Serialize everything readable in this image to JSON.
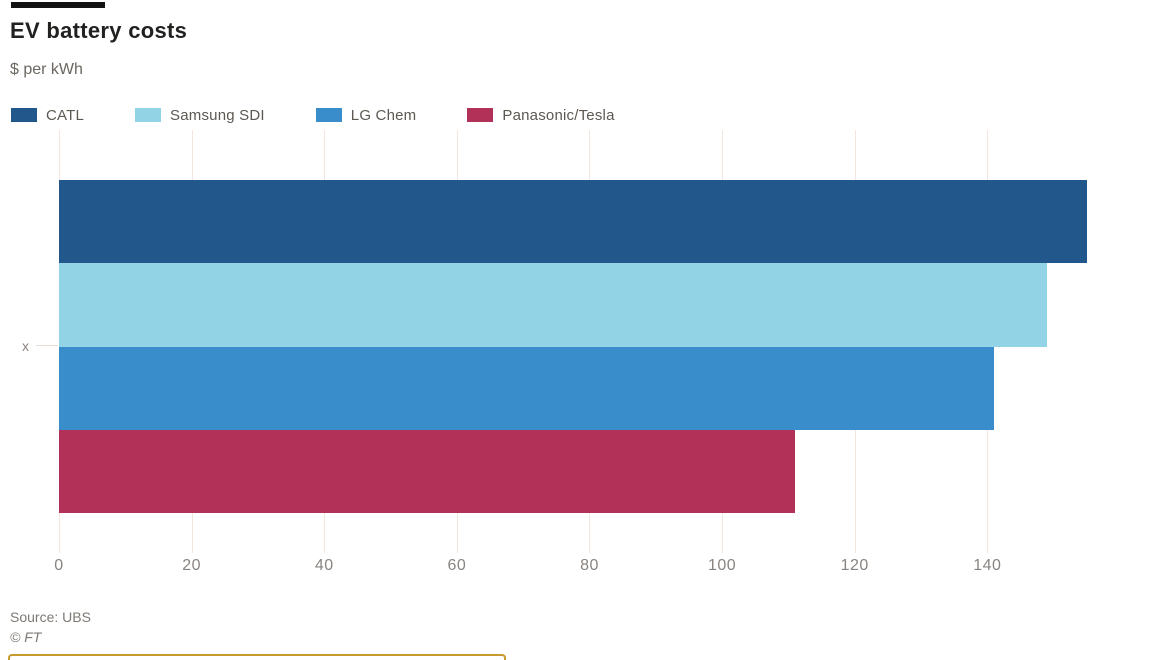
{
  "header": {
    "title": "EV battery costs",
    "subtitle": "$ per kWh"
  },
  "legend": {
    "items": [
      {
        "label": "CATL",
        "color": "#21578a"
      },
      {
        "label": "Samsung SDI",
        "color": "#93d3e6"
      },
      {
        "label": "LG Chem",
        "color": "#388dca"
      },
      {
        "label": "Panasonic/Tesla",
        "color": "#b23158"
      }
    ]
  },
  "chart_data": {
    "type": "bar",
    "orientation": "horizontal",
    "title": "EV battery costs",
    "units_label": "$ per kWh",
    "categories": [
      "CATL",
      "Samsung SDI",
      "LG Chem",
      "Panasonic/Tesla"
    ],
    "values": [
      155,
      149,
      141,
      111
    ],
    "colors": [
      "#21578a",
      "#93d3e6",
      "#388dca",
      "#b23158"
    ],
    "x_ticks": [
      0,
      20,
      40,
      60,
      80,
      100,
      120,
      140
    ],
    "xlim": [
      0,
      167
    ],
    "y_tick_label": "x",
    "grid": true,
    "gridline_color": "#f3e6df",
    "legend_position": "top"
  },
  "footer": {
    "source": "Source: UBS",
    "copyright": "© FT"
  },
  "annotations": {
    "highlight_box_color": "#c79a2e"
  }
}
